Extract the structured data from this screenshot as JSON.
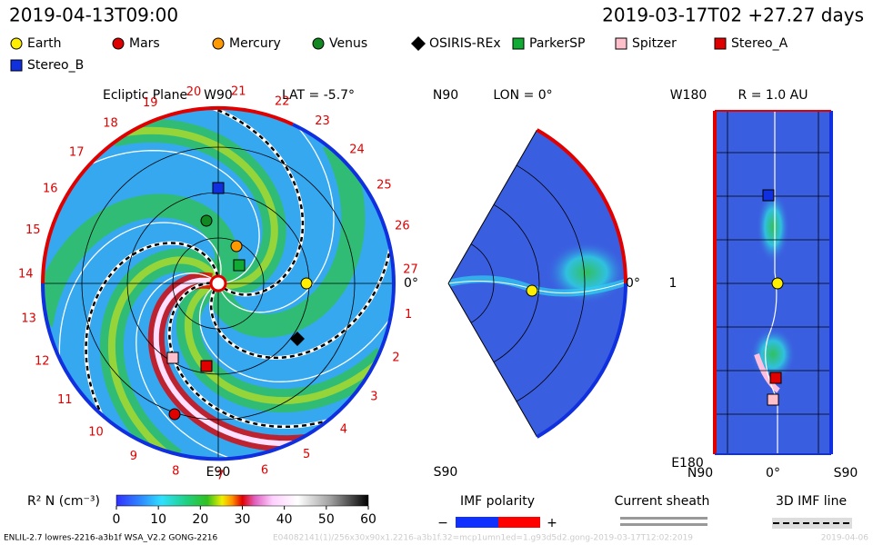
{
  "header": {
    "time": "2019-04-13T09:00",
    "run": "2019-03-17T02 +27.27 days"
  },
  "legend": [
    "Earth",
    "Mars",
    "Mercury",
    "Venus",
    "OSIRIS-REx",
    "ParkerSP",
    "Spitzer",
    "Stereo_A",
    "Stereo_B"
  ],
  "ecliptic": {
    "title": "Ecliptic Plane",
    "top": "W90",
    "lat": "LAT = -5.7°",
    "right": "0°",
    "bottom": "E90",
    "days": [
      1,
      2,
      3,
      4,
      5,
      6,
      7,
      8,
      9,
      10,
      11,
      12,
      13,
      14,
      15,
      16,
      17,
      18,
      19,
      20,
      21,
      22,
      23,
      24,
      25,
      26,
      27
    ]
  },
  "meridional": {
    "top": "N90",
    "lon": "LON = 0°",
    "bottom": "S90",
    "right": "0°"
  },
  "radius": {
    "left_top": "W180",
    "title": "R = 1.0 AU",
    "mid": "1",
    "left_bottom": "E180",
    "x_left": "N90",
    "x_mid": "0°",
    "x_right": "S90"
  },
  "colorbar": {
    "label": "R² N (cm⁻³)",
    "ticks": [
      0,
      10,
      20,
      30,
      40,
      50,
      60
    ]
  },
  "imf": {
    "title": "IMF polarity",
    "minus": "−",
    "plus": "+"
  },
  "sheath": {
    "title": "Current sheath"
  },
  "imf_line": {
    "title": "3D IMF line"
  },
  "footer": {
    "info": "ENLIL-2.7 lowres-2216-a3b1f WSA_V2.2 GONG-2216",
    "faded": "E04082141(1)/256x30x90x1.2216-a3b1f.32=mcp1umn1ed=1.g93d5d2.gong-2019-03-17T12:02:2019",
    "date": "2019-04-06"
  }
}
